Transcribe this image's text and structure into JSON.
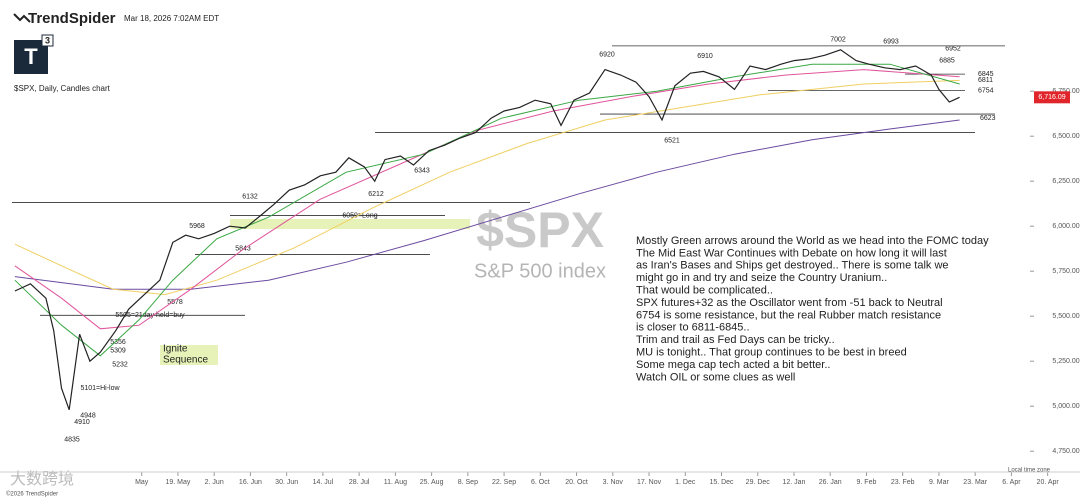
{
  "header": {
    "brand": "TrendSpider",
    "timestamp": "Mar 18, 2026 7:02AM EDT",
    "logo": "T",
    "logo_badge": "3",
    "symbol_line": "$SPX, Daily, Candles chart"
  },
  "watermark": {
    "symbol": "$SPX",
    "name": "S&P 500 index",
    "overlay": "大数跨境"
  },
  "footer": {
    "copyright": "©2026 TrendSpider",
    "timezone": "Local time zone"
  },
  "chart_data": {
    "type": "line",
    "xlim": [
      0,
      405
    ],
    "ylim": [
      4690,
      7090
    ],
    "xticks": [
      {
        "value": 51,
        "label": "May"
      },
      {
        "value": 65,
        "label": "19. May"
      },
      {
        "value": 79,
        "label": "2. Jun"
      },
      {
        "value": 93,
        "label": "16. Jun"
      },
      {
        "value": 107,
        "label": "30. Jun"
      },
      {
        "value": 121,
        "label": "14. Jul"
      },
      {
        "value": 135,
        "label": "28. Jul"
      },
      {
        "value": 149,
        "label": "11. Aug"
      },
      {
        "value": 163,
        "label": "25. Aug"
      },
      {
        "value": 177,
        "label": "8. Sep"
      },
      {
        "value": 191,
        "label": "22. Sep"
      },
      {
        "value": 205,
        "label": "6. Oct"
      },
      {
        "value": 219,
        "label": "20. Oct"
      },
      {
        "value": 233,
        "label": "3. Nov"
      },
      {
        "value": 247,
        "label": "17. Nov"
      },
      {
        "value": 261,
        "label": "1. Dec"
      },
      {
        "value": 275,
        "label": "15. Dec"
      },
      {
        "value": 289,
        "label": "29. Dec"
      },
      {
        "value": 303,
        "label": "12. Jan"
      },
      {
        "value": 317,
        "label": "26. Jan"
      },
      {
        "value": 331,
        "label": "9. Feb"
      },
      {
        "value": 345,
        "label": "23. Feb"
      },
      {
        "value": 359,
        "label": "9. Mar"
      },
      {
        "value": 373,
        "label": "23. Mar"
      },
      {
        "value": 387,
        "label": "6. Apr"
      },
      {
        "value": 401,
        "label": "20. Apr"
      }
    ],
    "yticks": [
      {
        "value": 4750,
        "label": "4,750.00"
      },
      {
        "value": 5000,
        "label": "5,000.00"
      },
      {
        "value": 5250,
        "label": "5,250.00"
      },
      {
        "value": 5500,
        "label": "5,500.00"
      },
      {
        "value": 5750,
        "label": "5,750.00"
      },
      {
        "value": 6000,
        "label": "6,000.00"
      },
      {
        "value": 6250,
        "label": "6,250.00"
      },
      {
        "value": 6500,
        "label": "6,500.00"
      },
      {
        "value": 6750,
        "label": "6,750.00"
      }
    ],
    "last_price": {
      "value": 6716.09,
      "label": "6,716.09",
      "color": "#e0262b"
    },
    "series": [
      {
        "color": "#222222",
        "x": [
          2,
          8,
          14,
          17,
          20,
          23,
          27,
          31,
          35,
          41,
          46,
          52,
          58,
          63,
          68,
          73,
          79,
          85,
          91,
          97,
          102,
          108,
          114,
          120,
          126,
          131,
          137,
          141,
          145,
          151,
          156,
          162,
          168,
          174,
          180,
          186,
          191,
          197,
          203,
          209,
          213,
          218,
          224,
          230,
          236,
          242,
          247,
          252,
          257,
          263,
          268,
          274,
          280,
          286,
          292,
          298,
          303,
          309,
          315,
          321,
          327,
          332,
          338,
          344,
          350,
          356,
          359,
          363,
          367
        ],
        "values": [
          5640,
          5680,
          5600,
          5420,
          5100,
          4980,
          5400,
          5250,
          5300,
          5420,
          5540,
          5620,
          5700,
          5910,
          5950,
          5930,
          5960,
          6000,
          5990,
          6060,
          6120,
          6200,
          6230,
          6280,
          6300,
          6380,
          6330,
          6250,
          6370,
          6390,
          6340,
          6420,
          6450,
          6490,
          6520,
          6600,
          6640,
          6660,
          6700,
          6680,
          6560,
          6700,
          6740,
          6870,
          6840,
          6800,
          6720,
          6590,
          6780,
          6850,
          6860,
          6830,
          6760,
          6890,
          6870,
          6900,
          6920,
          6930,
          6950,
          6980,
          6920,
          6900,
          6880,
          6870,
          6890,
          6840,
          6760,
          6690,
          6716
        ]
      },
      {
        "color": "#3aa845",
        "x": [
          2,
          20,
          35,
          50,
          63,
          80,
          100,
          130,
          160,
          190,
          220,
          250,
          280,
          310,
          340,
          367
        ],
        "values": [
          5700,
          5450,
          5280,
          5480,
          5700,
          5930,
          6050,
          6300,
          6400,
          6600,
          6700,
          6750,
          6830,
          6900,
          6900,
          6790
        ]
      },
      {
        "color": "#e0559b",
        "x": [
          2,
          20,
          35,
          50,
          70,
          90,
          120,
          150,
          180,
          210,
          240,
          270,
          300,
          330,
          367
        ],
        "values": [
          5780,
          5600,
          5430,
          5450,
          5650,
          5870,
          6150,
          6340,
          6530,
          6640,
          6720,
          6790,
          6840,
          6870,
          6830
        ]
      },
      {
        "color": "#f0cf63",
        "x": [
          2,
          20,
          40,
          60,
          80,
          110,
          140,
          170,
          200,
          230,
          260,
          290,
          330,
          367
        ],
        "values": [
          5900,
          5780,
          5650,
          5620,
          5700,
          5880,
          6100,
          6300,
          6460,
          6590,
          6660,
          6730,
          6790,
          6810
        ]
      },
      {
        "color": "#6a4aa0",
        "x": [
          2,
          40,
          70,
          100,
          130,
          160,
          190,
          220,
          250,
          280,
          310,
          340,
          367
        ],
        "values": [
          5720,
          5650,
          5650,
          5700,
          5800,
          5920,
          6050,
          6180,
          6300,
          6400,
          6480,
          6540,
          6590
        ]
      }
    ],
    "levels": [
      7002,
      6993,
      6952,
      6885,
      6845,
      6811,
      6754,
      6623,
      6521,
      6920,
      6910,
      6343,
      6212,
      6132,
      5968,
      {
        "value": 6059,
        "label": "6059=Long"
      },
      5843,
      5578,
      {
        "value": 5505,
        "label": "5505=21day held=buy"
      },
      5356,
      5309,
      5232,
      {
        "value": 5101,
        "label": "5101=Hi-low"
      },
      4948,
      4910,
      4835
    ],
    "callout": [
      "Ignite",
      "Sequence"
    ],
    "notes": [
      "Mostly Green arrows around the World as we head into the FOMC today",
      "The Mid East War Continues with Debate on how long it will last",
      "as Iran's Bases and Ships get destroyed.. There is some talk we",
      "might go in and try and seize the Country Uranium..",
      "That would be complicated..",
      "SPX futures+32 as the Oscillator went from -51 back to Neutral",
      "6754 is some resistance, but the real Rubber match resistance",
      "is closer to 6811-6845..",
      "Trim and trail as Fed Days can be tricky..",
      "MU is tonight.. That group continues to be best in breed",
      "Some mega cap tech acted a bit better..",
      "Watch OIL or some clues as well"
    ]
  }
}
